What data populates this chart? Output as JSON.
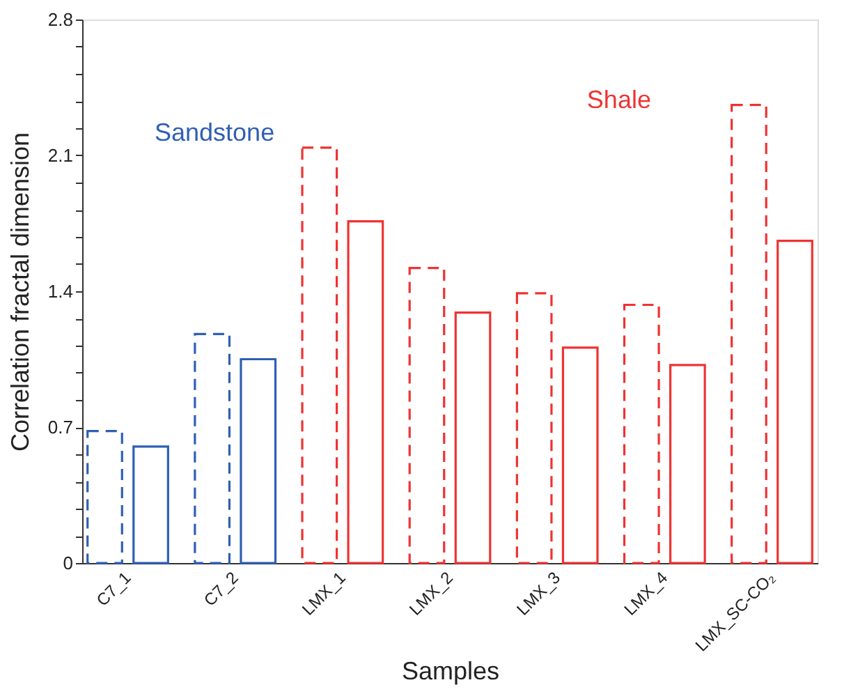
{
  "chart_data": {
    "type": "bar",
    "xlabel": "Samples",
    "ylabel": "Correlation fractal dimension",
    "categories": [
      "C7_1",
      "C7_2",
      "LMX_1",
      "LMX_2",
      "LMX_3",
      "LMX_4",
      "LMX_SC-CO₂"
    ],
    "series": [
      {
        "line_style": "dashed",
        "colors": [
          "#2f5fb3",
          "#2f5fb3",
          "#ee3333",
          "#ee3333",
          "#ee3333",
          "#ee3333",
          "#ee3333"
        ],
        "values": [
          0.68,
          1.18,
          2.14,
          1.52,
          1.39,
          1.33,
          2.36
        ]
      },
      {
        "line_style": "solid",
        "colors": [
          "#2f5fb3",
          "#2f5fb3",
          "#ee3333",
          "#ee3333",
          "#ee3333",
          "#ee3333",
          "#ee3333"
        ],
        "values": [
          0.6,
          1.05,
          1.76,
          1.29,
          1.11,
          1.02,
          1.66
        ]
      }
    ],
    "ylim": [
      0,
      2.8
    ],
    "yticks": [
      0,
      {
        "value": 0.14,
        "label": null
      },
      {
        "value": 0.28,
        "label": null
      },
      {
        "value": 0.42,
        "label": null
      },
      {
        "value": 0.56,
        "label": null
      },
      0.7,
      {
        "value": 0.84,
        "label": null
      },
      {
        "value": 0.98,
        "label": null
      },
      {
        "value": 1.12,
        "label": null
      },
      {
        "value": 1.26,
        "label": null
      },
      1.4,
      {
        "value": 1.54,
        "label": null
      },
      {
        "value": 1.68,
        "label": null
      },
      {
        "value": 1.82,
        "label": null
      },
      {
        "value": 1.96,
        "label": null
      },
      2.1,
      {
        "value": 2.24,
        "label": null
      },
      {
        "value": 2.38,
        "label": null
      },
      {
        "value": 2.52,
        "label": null
      },
      {
        "value": 2.66,
        "label": null
      },
      2.8
    ],
    "annotations": [
      "Sandstone",
      "Shale"
    ],
    "grid": false
  }
}
